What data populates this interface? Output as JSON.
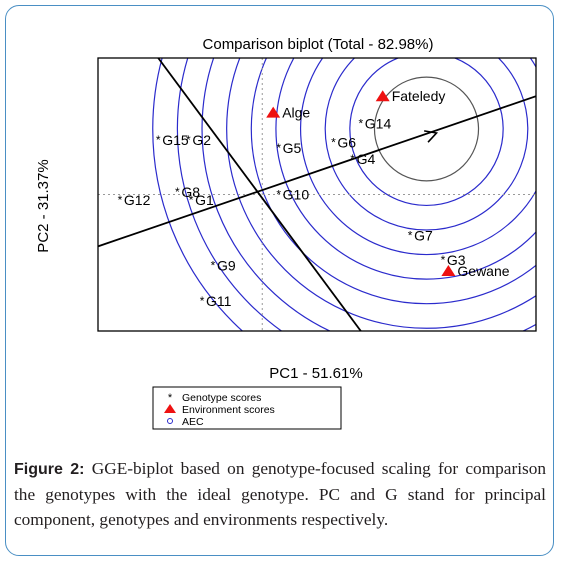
{
  "chart_data": {
    "type": "scatter",
    "title": "Comparison biplot (Total - 82.98%)",
    "xlabel": "PC1 - 51.61%",
    "ylabel": "PC2 - 31.37%",
    "xlim": [
      -3.0,
      5.0
    ],
    "ylim": [
      -2.5,
      2.5
    ],
    "grid": false,
    "legend_placement": "bottom-center",
    "colors": {
      "circles": "#2b2bcc",
      "environments": "#ee1111",
      "genotypes": "#000000",
      "axes": "#000000"
    },
    "genotypes": [
      {
        "label": "G15",
        "x": -1.9,
        "y": 1.0
      },
      {
        "label": "G2",
        "x": -1.35,
        "y": 1.0
      },
      {
        "label": "G5",
        "x": 0.3,
        "y": 0.85
      },
      {
        "label": "G6",
        "x": 1.3,
        "y": 0.95
      },
      {
        "label": "G4",
        "x": 1.65,
        "y": 0.65
      },
      {
        "label": "G14",
        "x": 1.8,
        "y": 1.3
      },
      {
        "label": "G8",
        "x": -1.55,
        "y": 0.05
      },
      {
        "label": "G12",
        "x": -2.6,
        "y": -0.1
      },
      {
        "label": "G1",
        "x": -1.3,
        "y": -0.1
      },
      {
        "label": "G10",
        "x": 0.3,
        "y": 0.0
      },
      {
        "label": "G7",
        "x": 2.7,
        "y": -0.75
      },
      {
        "label": "G3",
        "x": 3.3,
        "y": -1.2
      },
      {
        "label": "G9",
        "x": -0.9,
        "y": -1.3
      },
      {
        "label": "G11",
        "x": -1.1,
        "y": -1.95
      }
    ],
    "environments": [
      {
        "label": "Fateledy",
        "x": 2.2,
        "y": 1.8
      },
      {
        "label": "Alge",
        "x": 0.2,
        "y": 1.5
      },
      {
        "label": "Gewane",
        "x": 3.4,
        "y": -1.4
      }
    ],
    "ideal_point": {
      "x": 3.0,
      "y": 1.2
    },
    "circle_radii": [
      0.95,
      1.4,
      1.85,
      2.3,
      2.75,
      3.2,
      3.65,
      4.1,
      4.55,
      5.0
    ],
    "aec_line": {
      "from": [
        -3.0,
        -0.95
      ],
      "to": [
        5.0,
        1.8
      ]
    },
    "perpendicular_line": {
      "from": [
        -1.9,
        2.5
      ],
      "to": [
        1.8,
        -2.5
      ]
    },
    "legend": [
      {
        "label": "Genotype scores",
        "marker": "asterisk"
      },
      {
        "label": "Environment scores",
        "marker": "triangle"
      },
      {
        "label": "AEC",
        "marker": "circle"
      }
    ]
  },
  "caption": {
    "label": "Figure 2:",
    "text": "GGE-biplot based on genotype-focused scaling for comparison the genotypes with the ideal genotype. PC and G stand for principal component, genotypes and environments respectively."
  }
}
